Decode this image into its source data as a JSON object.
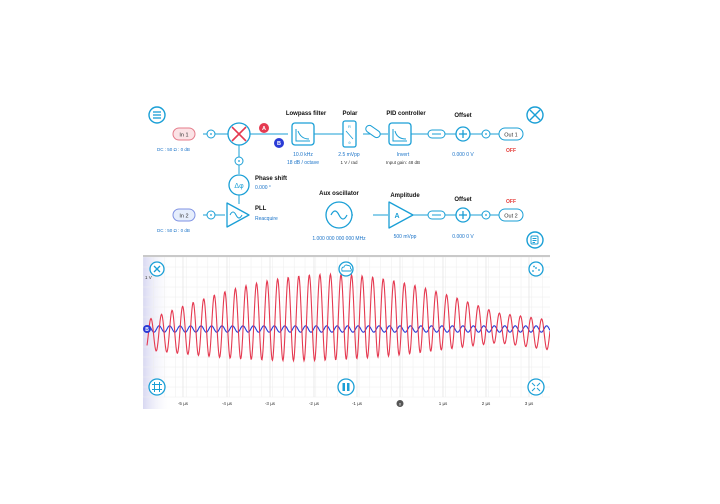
{
  "schematic": {
    "in1": {
      "label": "In 1",
      "coupling": "DC : 50 Ω : 0 dB"
    },
    "in2": {
      "label": "In 2",
      "coupling": "DC : 50 Ω : 0 dB"
    },
    "badge_a": "A",
    "badge_b": "B",
    "lowpass": {
      "title": "Lowpass filter",
      "freq": "10.0 kHz",
      "slope": "18 dB / octave"
    },
    "polar": {
      "title": "Polar",
      "value": "2.5 mVpp",
      "unit": "1 V / rad"
    },
    "pid": {
      "title": "PID controller",
      "mode": "Invert",
      "gain": "Input gain: 48 dB"
    },
    "offset1": {
      "title": "Offset",
      "value": "0.000 0 V"
    },
    "out1": {
      "label": "Out 1",
      "state": "OFF"
    },
    "phase_shift": {
      "title": "Phase shift",
      "value": "0.000 °"
    },
    "pll": {
      "title": "PLL",
      "action": "Reacquire"
    },
    "aux": {
      "title": "Aux oscillator",
      "freq": "1.000 000 000 000 MHz"
    },
    "amplitude": {
      "title": "Amplitude",
      "symbol": "A",
      "value": "500 mVpp"
    },
    "offset2": {
      "title": "Offset",
      "value": "0.000 0 V"
    },
    "out2": {
      "label": "Out 2",
      "state": "OFF"
    },
    "phase_symbol": "Δφ"
  },
  "scope": {
    "y_label": "1 V",
    "trace_b_marker": "B",
    "x_ticks": [
      "-5 µs",
      "-4 µs",
      "-3 µs",
      "-2 µs",
      "-1 µs",
      "0",
      "1 µs",
      "2 µs",
      "3 µs"
    ],
    "colors": {
      "trace_a": "#e53950",
      "trace_b": "#2a3bd6",
      "accent": "#1a9fd6"
    }
  }
}
